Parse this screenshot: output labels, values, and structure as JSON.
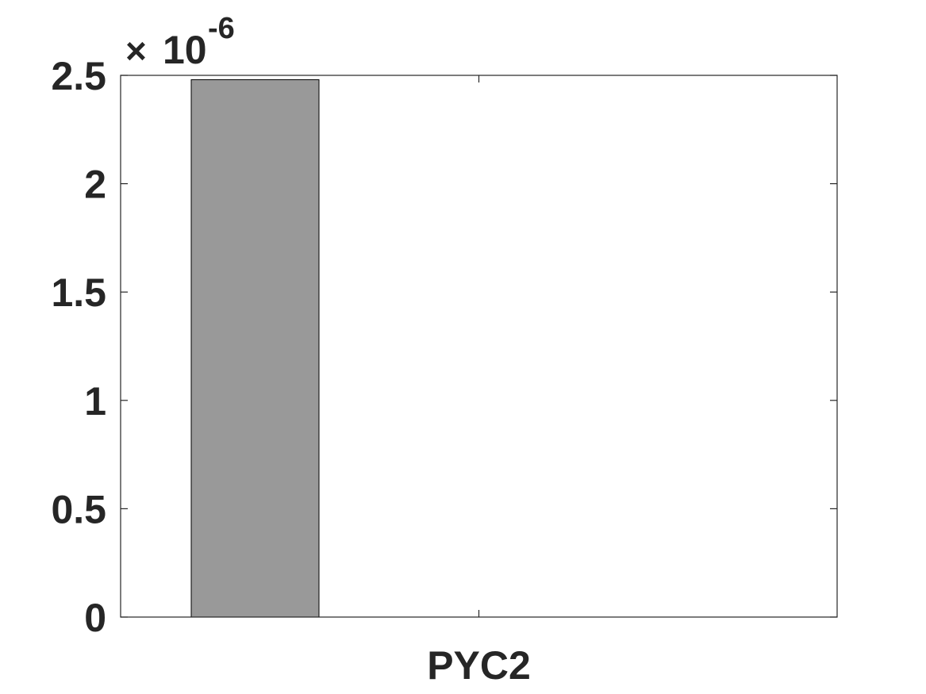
{
  "chart_data": {
    "type": "bar",
    "categories": [
      "PYC2"
    ],
    "values": [
      2.48e-06
    ],
    "ylim": [
      0,
      2.5e-06
    ],
    "ytick_labels": [
      "0",
      "0.5",
      "1",
      "1.5",
      "2",
      "2.5"
    ],
    "ytick_values": [
      0,
      5e-07,
      1e-06,
      1.5e-06,
      2e-06,
      2.5e-06
    ],
    "exponent_label": {
      "multiplier": "×",
      "base": "10",
      "power": "-6"
    },
    "bar_color": "#999999",
    "title": "",
    "xlabel": "",
    "ylabel": "",
    "grid": false
  }
}
